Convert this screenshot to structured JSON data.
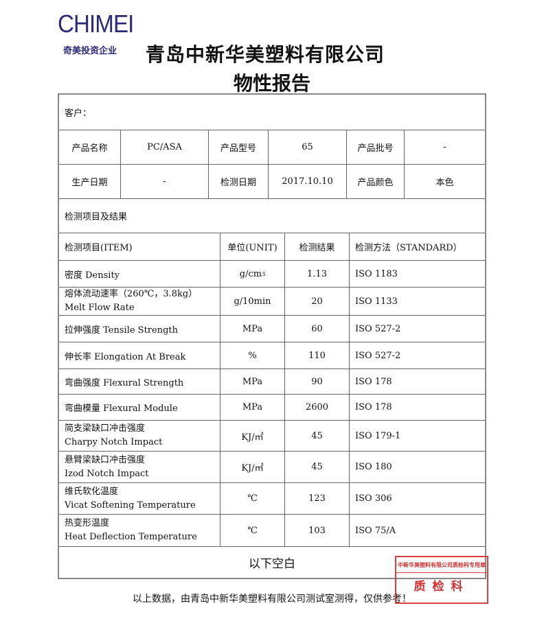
{
  "header": {
    "logo": "CHIMEI",
    "logo_sub": "奇美投资企业",
    "company": "青岛中新华美塑料有限公司",
    "report_title": "物性报告"
  },
  "info": {
    "customer_label": "客户：",
    "row1": [
      "产品名称",
      "PC/ASA",
      "产品型号",
      "65",
      "产品批号",
      "-"
    ],
    "row2": [
      "生产日期",
      "-",
      "检测日期",
      "2017.10.10",
      "产品颜色",
      "本色"
    ],
    "section_title": "检测项目及结果"
  },
  "table": {
    "headers": [
      "检测项目(ITEM)",
      "单位(UNIT)",
      "检测结果",
      "检测方法（STANDARD）"
    ],
    "rows": [
      {
        "item": "密度  Density",
        "item2": "",
        "unit": "g/cm",
        "unit_sup": "3",
        "result": "1.13",
        "method": "ISO 1183"
      },
      {
        "item": "熔体流动速率（260℃，3.8kg）",
        "item2": "Melt    Flow     Rate",
        "unit": "g/10min",
        "unit_sup": "",
        "result": "20",
        "method": "ISO 1133"
      },
      {
        "item": "拉伸强度    Tensile Strength",
        "item2": "",
        "unit": "MPa",
        "unit_sup": "",
        "result": "60",
        "method": "ISO 527-2"
      },
      {
        "item": "伸长率    Elongation At Break",
        "item2": "",
        "unit": "%",
        "unit_sup": "",
        "result": "110",
        "method": "ISO 527-2"
      },
      {
        "item": "弯曲强度    Flexural Strength",
        "item2": "",
        "unit": "MPa",
        "unit_sup": "",
        "result": "90",
        "method": "ISO 178"
      },
      {
        "item": "弯曲模量    Flexural Module",
        "item2": "",
        "unit": "MPa",
        "unit_sup": "",
        "result": "2600",
        "method": "ISO 178"
      },
      {
        "item": "简支梁缺口冲击强度",
        "item2": "Charpy Notch Impact",
        "unit": "KJ/㎡",
        "unit_sup": "",
        "result": "45",
        "method": "ISO 179-1"
      },
      {
        "item": "悬臂梁缺口冲击强度",
        "item2": "Izod Notch Impact",
        "unit": "KJ/㎡",
        "unit_sup": "",
        "result": "45",
        "method": "ISO 180"
      },
      {
        "item": "维氏软化温度",
        "item2": "Vicat Softening Temperature",
        "unit": "℃",
        "unit_sup": "",
        "result": "123",
        "method": "ISO 306"
      },
      {
        "item": "热变形温度",
        "item2": "Heat Deflection Temperature",
        "unit": "℃",
        "unit_sup": "",
        "result": "103",
        "method": "ISO 75/A"
      }
    ],
    "footer": "以下空白"
  },
  "note": "以上数据，由青岛中新华美塑料有限公司测试室测得，仅供参考！",
  "stamp": {
    "top": "中新华美塑料有限公司质检科专用章",
    "bottom": "质检科",
    "color": "#d94040"
  }
}
